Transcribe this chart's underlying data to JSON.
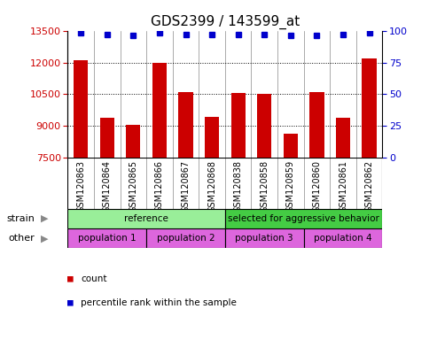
{
  "title": "GDS2399 / 143599_at",
  "samples": [
    "GSM120863",
    "GSM120864",
    "GSM120865",
    "GSM120866",
    "GSM120867",
    "GSM120868",
    "GSM120838",
    "GSM120858",
    "GSM120859",
    "GSM120860",
    "GSM120861",
    "GSM120862"
  ],
  "counts": [
    12100,
    9400,
    9050,
    11980,
    10620,
    9450,
    10550,
    10520,
    8630,
    10620,
    9400,
    12200
  ],
  "percentile_ranks": [
    98,
    97,
    96,
    98,
    97,
    97,
    97,
    97,
    96,
    96,
    97,
    98
  ],
  "ymin": 7500,
  "ymax": 13500,
  "yticks": [
    7500,
    9000,
    10500,
    12000,
    13500
  ],
  "y2min": 0,
  "y2max": 100,
  "y2ticks": [
    0,
    25,
    50,
    75,
    100
  ],
  "bar_color": "#cc0000",
  "dot_color": "#0000cc",
  "bar_width": 0.55,
  "strain_groups": [
    {
      "label": "reference",
      "start": 0,
      "end": 6,
      "color": "#99ee99"
    },
    {
      "label": "selected for aggressive behavior",
      "start": 6,
      "end": 12,
      "color": "#44cc44"
    }
  ],
  "other_groups": [
    {
      "label": "population 1",
      "start": 0,
      "end": 3,
      "color": "#dd66dd"
    },
    {
      "label": "population 2",
      "start": 3,
      "end": 6,
      "color": "#dd66dd"
    },
    {
      "label": "population 3",
      "start": 6,
      "end": 9,
      "color": "#dd66dd"
    },
    {
      "label": "population 4",
      "start": 9,
      "end": 12,
      "color": "#dd66dd"
    }
  ],
  "strain_label": "strain",
  "other_label": "other",
  "legend_items": [
    {
      "color": "#cc0000",
      "label": "count"
    },
    {
      "color": "#0000cc",
      "label": "percentile rank within the sample"
    }
  ],
  "background_color": "#ffffff",
  "tick_label_color_left": "#cc0000",
  "tick_label_color_right": "#0000cc",
  "xtick_bg_color": "#cccccc",
  "cell_line_color": "#888888"
}
